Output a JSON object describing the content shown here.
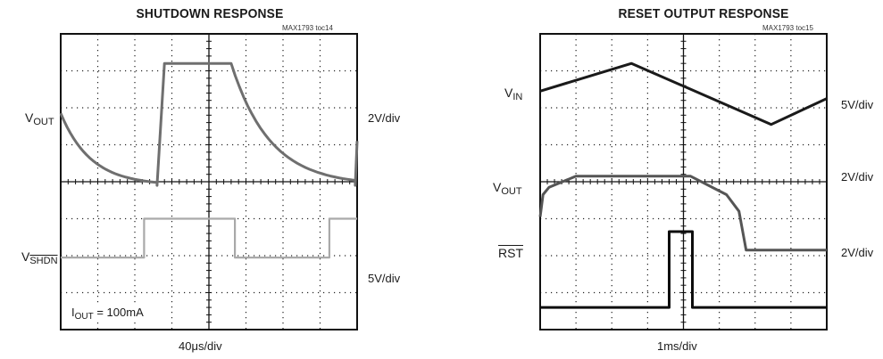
{
  "chart_data": [
    {
      "type": "line",
      "title": "SHUTDOWN RESPONSE",
      "figure_code": "MAX1793 toc14",
      "timebase": "40μs/div",
      "grid": {
        "divisions_x": 8,
        "divisions_y": 8
      },
      "channels": [
        {
          "label_main": "V",
          "label_sub": "OUT",
          "scale": "2V/div",
          "color": "#6f6f6f"
        },
        {
          "label_main": "V",
          "label_sub": "SHDN",
          "sub_overline": true,
          "scale": "5V/div",
          "color": "#a9a9a9"
        }
      ],
      "annotation": {
        "main": "I",
        "sub": "OUT",
        "rest": " = 100mA"
      },
      "traces": [
        {
          "channel": 0,
          "kind": "decay",
          "x_div": [
            0,
            2.6,
            2.8,
            3.2,
            4.6,
            8.05,
            8.4,
            8.6
          ],
          "y_div": [
            2.15,
            3.6,
            3.6,
            0.8,
            0.8,
            3.6,
            3.6,
            2.15
          ]
        },
        {
          "channel": 1,
          "kind": "step",
          "x_div": [
            0,
            2.25,
            2.25,
            4.7,
            4.7,
            7.25,
            7.25,
            8
          ],
          "y_div": [
            6.05,
            6.05,
            5.0,
            5.0,
            6.05,
            6.05,
            5.0,
            5.0
          ]
        }
      ]
    },
    {
      "type": "line",
      "title": "RESET OUTPUT RESPONSE",
      "figure_code": "MAX1793 toc15",
      "timebase": "1ms/div",
      "grid": {
        "divisions_x": 8,
        "divisions_y": 8
      },
      "channels": [
        {
          "label_main": "V",
          "label_sub": "IN",
          "scale": "5V/div",
          "color": "#1a1a1a"
        },
        {
          "label_main": "V",
          "label_sub": "OUT",
          "scale": "2V/div",
          "color": "#555555"
        },
        {
          "label_main": "RST",
          "label_overline": true,
          "scale": "2V/div",
          "color": "#0d0d0d"
        }
      ],
      "traces": [
        {
          "channel": 0,
          "kind": "polyline",
          "x_div": [
            0,
            2.55,
            6.45,
            8
          ],
          "y_div": [
            1.55,
            0.8,
            2.45,
            1.75
          ]
        },
        {
          "channel": 1,
          "kind": "polyline",
          "x_div": [
            0,
            0.08,
            0.25,
            1.0,
            4.2,
            5.2,
            5.55,
            5.75,
            8
          ],
          "y_div": [
            4.95,
            4.35,
            4.15,
            3.85,
            3.85,
            4.35,
            4.8,
            5.85,
            5.85
          ]
        },
        {
          "channel": 2,
          "kind": "pulse",
          "x_div": [
            0,
            3.6,
            3.6,
            4.25,
            4.25,
            8
          ],
          "y_div": [
            7.4,
            7.4,
            5.35,
            5.35,
            7.4,
            7.4
          ]
        }
      ]
    }
  ]
}
